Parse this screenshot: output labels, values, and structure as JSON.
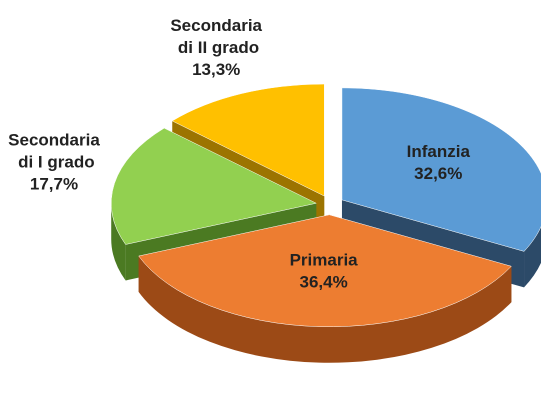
{
  "chart_data": {
    "type": "pie3d",
    "categories": [
      "Infanzia",
      "Primaria",
      "Secondaria di I grado",
      "Secondaria di II grado"
    ],
    "values": [
      32.6,
      36.4,
      17.7,
      13.3
    ],
    "value_labels": [
      "32,6%",
      "36,4%",
      "17,7%",
      "13,3%"
    ],
    "colors": [
      "#5b9bd5",
      "#ed7d31",
      "#92d050",
      "#ffc000"
    ],
    "side_colors": [
      "#2c4a68",
      "#9c4a16",
      "#4b7a22",
      "#9c7400"
    ]
  }
}
